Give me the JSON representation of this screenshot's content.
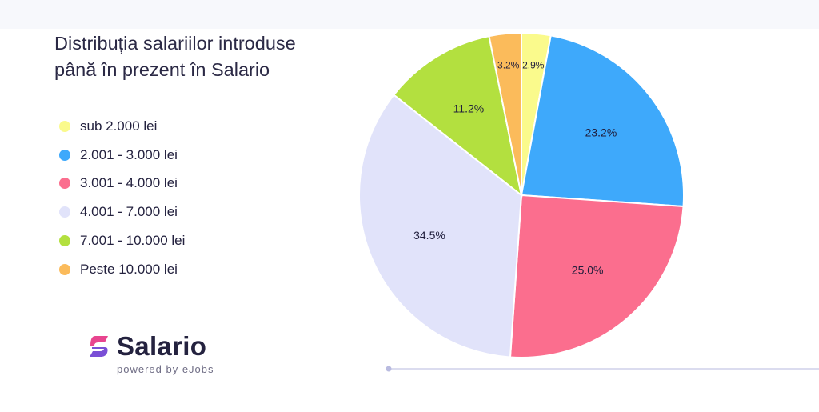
{
  "chart_data": {
    "type": "pie",
    "title": "Distribuția salariilor introduse până în prezent în Salario",
    "title_lines": [
      "Distribuția salariilor introduse",
      "până în prezent în Salario"
    ],
    "categories": [
      "sub 2.000 lei",
      "2.001 - 3.000 lei",
      "3.001 - 4.000 lei",
      "4.001 - 7.000 lei",
      "7.001 - 10.000 lei",
      "Peste 10.000 lei"
    ],
    "values": [
      2.9,
      23.2,
      25.0,
      34.5,
      11.2,
      3.2
    ],
    "labels": [
      "2.9%",
      "23.2%",
      "25.0%",
      "34.5%",
      "11.2%",
      "3.2%"
    ],
    "colors": [
      "#fafa8c",
      "#3ea9fb",
      "#fb6e8e",
      "#e1e3fa",
      "#b3e03f",
      "#fbbb5b"
    ],
    "start_angle_deg": 0,
    "direction": "clockwise",
    "legend_position": "left"
  },
  "brand": {
    "name": "Salario",
    "tagline": "powered by eJobs",
    "icon": "salario-logo-icon"
  }
}
